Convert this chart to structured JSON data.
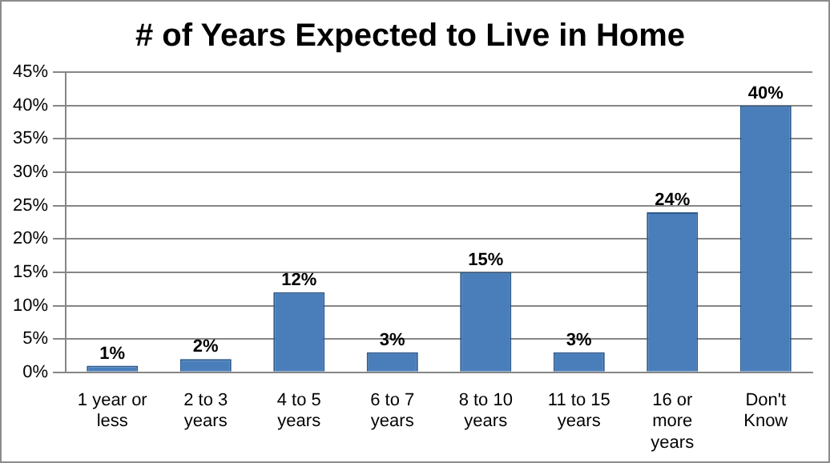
{
  "chart_data": {
    "type": "bar",
    "title": "# of Years Expected to Live in Home",
    "categories": [
      "1 year or less",
      "2 to 3 years",
      "4 to 5 years",
      "6 to 7 years",
      "8 to 10 years",
      "11 to 15 years",
      "16 or more years",
      "Don't Know"
    ],
    "values": [
      1,
      2,
      12,
      3,
      15,
      3,
      24,
      40
    ],
    "value_labels": [
      "1%",
      "2%",
      "12%",
      "3%",
      "15%",
      "3%",
      "24%",
      "40%"
    ],
    "color": "#4a7ebb",
    "ylim": [
      0,
      45
    ],
    "yticks": [
      {
        "value": 0,
        "label": "0%"
      },
      {
        "value": 5,
        "label": "5%"
      },
      {
        "value": 10,
        "label": "10%"
      },
      {
        "value": 15,
        "label": "15%"
      },
      {
        "value": 20,
        "label": "20%"
      },
      {
        "value": 25,
        "label": "25%"
      },
      {
        "value": 30,
        "label": "30%"
      },
      {
        "value": 35,
        "label": "35%"
      },
      {
        "value": 40,
        "label": "40%"
      },
      {
        "value": 45,
        "label": "45%"
      }
    ],
    "grid": "y",
    "legend": false
  }
}
